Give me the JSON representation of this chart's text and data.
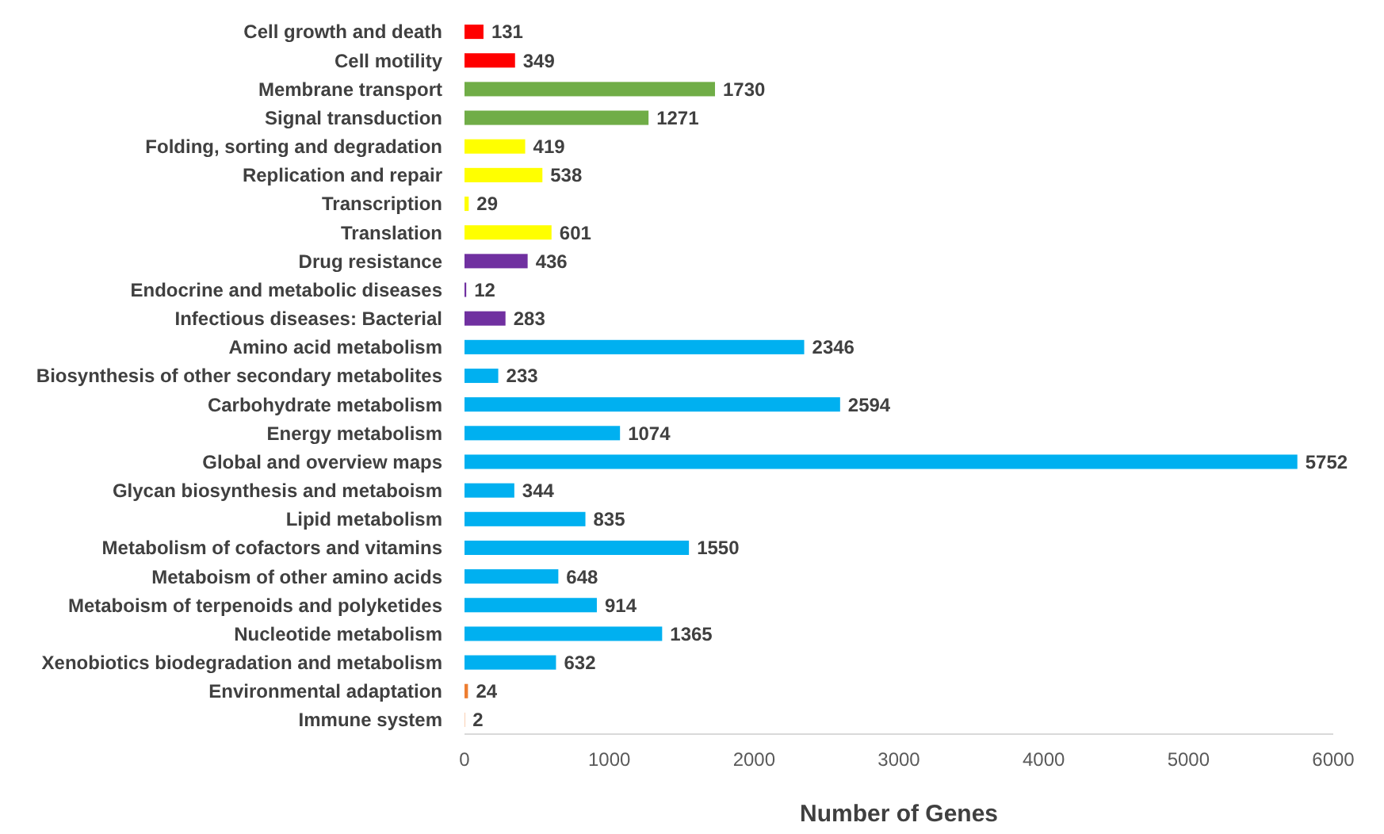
{
  "chart_data": {
    "type": "bar",
    "orientation": "horizontal",
    "xlabel": "Number of Genes",
    "categories": [
      "Cell growth and death",
      "Cell motility",
      "Membrane transport",
      "Signal transduction",
      "Folding, sorting and degradation",
      "Replication and repair",
      "Transcription",
      "Translation",
      "Drug resistance",
      "Endocrine and metabolic diseases",
      "Infectious diseases: Bacterial",
      "Amino acid metabolism",
      "Biosynthesis of other secondary metabolites",
      "Carbohydrate metabolism",
      "Energy metabolism",
      "Global and overview maps",
      "Glycan biosynthesis and metaboism",
      "Lipid metabolism",
      "Metabolism of cofactors and vitamins",
      "Metaboism of other amino acids",
      "Metaboism of terpenoids and polyketides",
      "Nucleotide metabolism",
      "Xenobiotics biodegradation and metabolism",
      "Environmental adaptation",
      "Immune system"
    ],
    "values": [
      131,
      349,
      1730,
      1271,
      419,
      538,
      29,
      601,
      436,
      12,
      283,
      2346,
      233,
      2594,
      1074,
      5752,
      344,
      835,
      1550,
      648,
      914,
      1365,
      632,
      24,
      2
    ],
    "colors": [
      "#ff0000",
      "#ff0000",
      "#70ad47",
      "#70ad47",
      "#ffff00",
      "#ffff00",
      "#ffff00",
      "#ffff00",
      "#7030a0",
      "#7030a0",
      "#7030a0",
      "#00b0f0",
      "#00b0f0",
      "#00b0f0",
      "#00b0f0",
      "#00b0f0",
      "#00b0f0",
      "#00b0f0",
      "#00b0f0",
      "#00b0f0",
      "#00b0f0",
      "#00b0f0",
      "#00b0f0",
      "#ed7d31",
      "#ed7d31"
    ],
    "xlim": [
      0,
      6000
    ],
    "xticks": [
      0,
      1000,
      2000,
      3000,
      4000,
      5000,
      6000
    ],
    "data_labels": true
  }
}
